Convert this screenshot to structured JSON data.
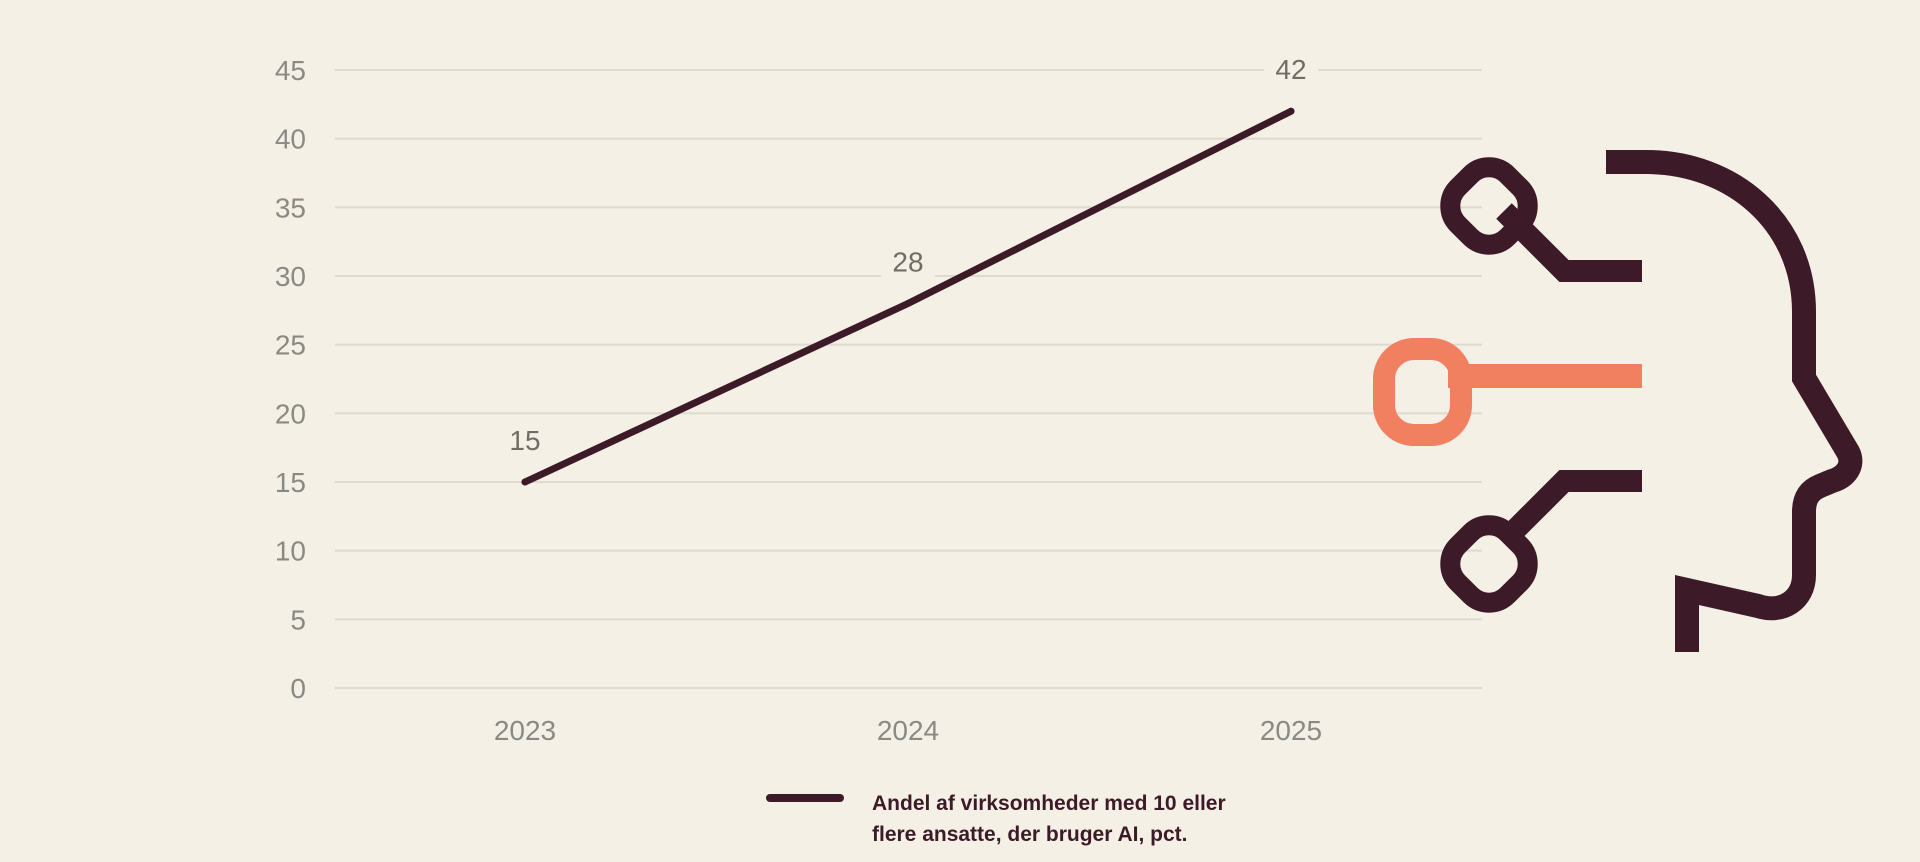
{
  "chart_data": {
    "type": "line",
    "categories": [
      "2023",
      "2024",
      "2025"
    ],
    "series": [
      {
        "name": "Andel af virksomheder med 10 eller flere ansatte, der bruger AI, pct.",
        "values": [
          15,
          28,
          42
        ]
      }
    ],
    "data_labels": [
      "15",
      "28",
      "42"
    ],
    "yticks": [
      0,
      5,
      10,
      15,
      20,
      25,
      30,
      35,
      40,
      45
    ],
    "ylim": [
      0,
      45
    ],
    "grid": true,
    "legend_position": "bottom",
    "title": "",
    "xlabel": "",
    "ylabel": ""
  },
  "legend": {
    "line1": "Andel af virksomheder med 10 eller",
    "line2": "flere ansatte, der bruger AI, pct."
  },
  "colors": {
    "background": "#f5f0e6",
    "series": "#3d1a28",
    "accent": "#f08060",
    "gridline": "#dedad2",
    "tick_text": "#8a8a85"
  },
  "illustration": {
    "icon": "ai-head-icon"
  }
}
